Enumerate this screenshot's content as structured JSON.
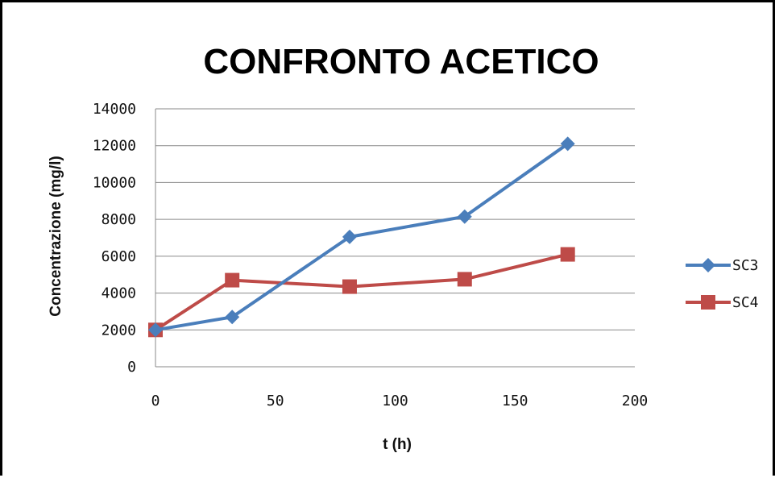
{
  "chart_data": {
    "type": "line",
    "title": "CONFRONTO ACETICO",
    "xlabel": "t (h)",
    "ylabel": "Concentrazione (mg/l)",
    "xlim": [
      0,
      200
    ],
    "ylim": [
      0,
      14000
    ],
    "xticks": [
      0,
      50,
      100,
      150,
      200
    ],
    "yticks": [
      0,
      2000,
      4000,
      6000,
      8000,
      10000,
      12000,
      14000
    ],
    "grid": "horizontal",
    "legend_position": "right",
    "series": [
      {
        "name": "SC3",
        "color": "#4a7ebb",
        "marker": "diamond",
        "x": [
          0,
          32,
          81,
          129,
          172
        ],
        "y": [
          2000,
          2700,
          7050,
          8150,
          12100
        ]
      },
      {
        "name": "SC4",
        "color": "#be4b48",
        "marker": "square",
        "x": [
          0,
          32,
          81,
          129,
          172
        ],
        "y": [
          2000,
          4700,
          4350,
          4750,
          6100
        ]
      }
    ]
  }
}
